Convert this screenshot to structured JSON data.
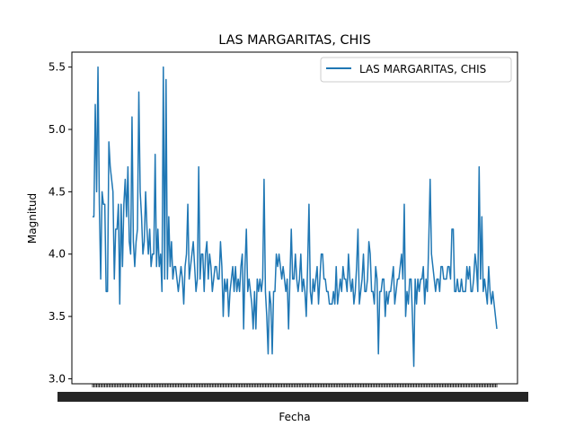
{
  "chart_data": {
    "type": "line",
    "title": "LAS MARGARITAS, CHIS",
    "xlabel": "Fecha",
    "ylabel": "Magnitud",
    "ylim": [
      2.96,
      5.62
    ],
    "yticks": [
      3.0,
      3.5,
      4.0,
      4.5,
      5.0,
      5.5
    ],
    "grid": false,
    "legend_position": "upper right",
    "series": [
      {
        "name": "LAS MARGARITAS, CHIS",
        "color": "#1f77b4",
        "values": [
          4.3,
          4.3,
          5.2,
          4.5,
          5.5,
          4.4,
          3.8,
          4.5,
          4.4,
          4.4,
          3.7,
          3.7,
          4.9,
          4.7,
          4.6,
          4.5,
          3.8,
          4.2,
          4.2,
          4.4,
          3.6,
          4.4,
          3.9,
          4.4,
          4.6,
          4.3,
          4.7,
          4.1,
          4.0,
          5.1,
          4.1,
          3.9,
          4.1,
          4.2,
          5.3,
          4.5,
          4.3,
          4.0,
          4.1,
          4.5,
          4.2,
          4.0,
          4.2,
          3.9,
          4.0,
          4.0,
          4.8,
          3.9,
          4.2,
          3.9,
          4.0,
          3.7,
          5.5,
          3.8,
          5.4,
          3.8,
          4.3,
          3.9,
          4.1,
          3.8,
          3.9,
          3.9,
          3.8,
          3.7,
          3.8,
          3.9,
          3.8,
          3.6,
          3.9,
          4.0,
          4.4,
          3.8,
          3.9,
          4.0,
          4.1,
          3.9,
          3.7,
          3.8,
          4.7,
          3.8,
          4.0,
          4.0,
          3.7,
          4.0,
          4.1,
          3.8,
          4.0,
          3.9,
          3.7,
          3.8,
          3.9,
          3.9,
          3.8,
          3.8,
          4.1,
          3.9,
          3.5,
          3.8,
          3.7,
          3.8,
          3.5,
          3.7,
          3.8,
          3.9,
          3.7,
          3.9,
          3.7,
          3.8,
          3.7,
          3.9,
          4.0,
          3.4,
          3.9,
          4.2,
          3.7,
          3.8,
          3.7,
          3.6,
          3.4,
          3.7,
          3.4,
          3.8,
          3.7,
          3.8,
          3.7,
          3.8,
          4.6,
          3.7,
          3.5,
          3.2,
          3.7,
          3.6,
          3.2,
          3.7,
          3.7,
          4.0,
          3.9,
          4.0,
          3.9,
          3.8,
          3.9,
          3.8,
          3.7,
          3.8,
          3.4,
          3.8,
          4.2,
          3.8,
          3.8,
          4.0,
          3.8,
          3.7,
          3.8,
          4.0,
          3.7,
          3.8,
          3.7,
          3.5,
          3.9,
          4.4,
          3.7,
          3.6,
          3.8,
          3.7,
          3.8,
          3.9,
          3.6,
          3.8,
          4.0,
          4.0,
          3.8,
          3.8,
          3.7,
          3.7,
          3.6,
          3.6,
          3.6,
          3.7,
          3.6,
          3.9,
          3.6,
          3.7,
          3.8,
          3.7,
          3.9,
          3.8,
          3.8,
          3.7,
          4.0,
          3.8,
          3.7,
          3.8,
          3.6,
          3.7,
          3.9,
          4.2,
          3.6,
          3.7,
          3.8,
          4.0,
          3.7,
          3.7,
          3.8,
          4.1,
          4.0,
          3.7,
          3.7,
          3.6,
          3.9,
          3.8,
          3.2,
          3.7,
          3.7,
          3.8,
          3.8,
          3.5,
          3.7,
          3.6,
          3.7,
          3.7,
          3.8,
          3.9,
          3.6,
          3.7,
          3.8,
          3.8,
          3.9,
          4.0,
          3.8,
          4.4,
          3.5,
          3.7,
          3.6,
          3.8,
          3.8,
          3.5,
          3.1,
          3.8,
          3.6,
          3.8,
          3.7,
          3.8,
          3.8,
          3.9,
          3.6,
          3.8,
          3.7,
          4.1,
          4.6,
          4.0,
          3.9,
          3.8,
          3.7,
          3.8,
          3.8,
          3.7,
          3.9,
          3.9,
          3.8,
          3.8,
          3.8,
          3.9,
          3.9,
          3.8,
          4.2,
          4.2,
          3.7,
          3.7,
          3.8,
          3.7,
          3.7,
          3.8,
          3.7,
          3.7,
          3.7,
          3.9,
          3.8,
          3.9,
          3.7,
          3.7,
          3.8,
          4.0,
          3.9,
          3.7,
          4.7,
          3.8,
          4.3,
          3.7,
          3.8,
          3.7,
          3.6,
          3.9,
          3.7,
          3.6,
          3.7,
          3.6,
          3.5,
          3.4
        ]
      }
    ]
  }
}
